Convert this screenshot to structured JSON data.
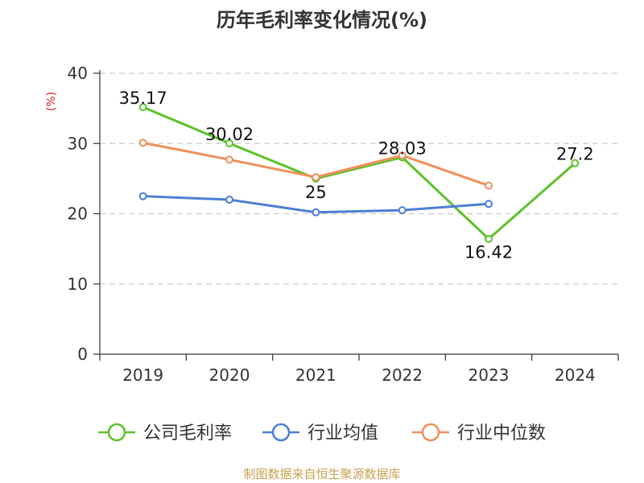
{
  "chart_data": {
    "type": "line",
    "title": "历年毛利率变化情况(%)",
    "ylabel": "(%)",
    "xlabel": "",
    "categories": [
      "2019",
      "2020",
      "2021",
      "2022",
      "2023",
      "2024"
    ],
    "ylim": [
      0,
      40
    ],
    "yticks": [
      "0",
      "10",
      "20",
      "30",
      "40"
    ],
    "grid": "horizontal-dashed",
    "legend_position": "bottom",
    "series": [
      {
        "name": "公司毛利率",
        "color": "#5cc22a",
        "values": [
          35.17,
          30.02,
          25,
          28.03,
          16.42,
          27.2
        ],
        "labels": [
          "35.17",
          "30.02",
          "25",
          "28.03",
          "16.42",
          "27.2"
        ]
      },
      {
        "name": "行业均值",
        "color": "#4a7fd6",
        "values": [
          22.5,
          22.0,
          20.2,
          20.5,
          21.4,
          null
        ]
      },
      {
        "name": "行业中位数",
        "color": "#f0905a",
        "values": [
          30.1,
          27.7,
          25.2,
          28.3,
          24.0,
          null
        ]
      }
    ]
  },
  "footer": {
    "source": "制图数据来自恒生聚源数据库"
  }
}
